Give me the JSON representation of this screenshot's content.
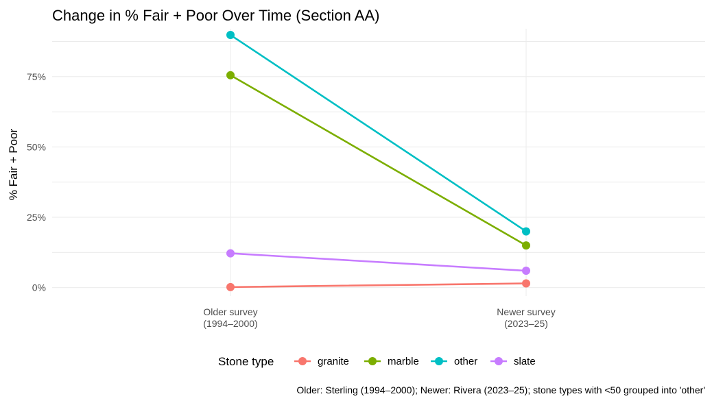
{
  "chart_data": {
    "type": "line",
    "title": "Change in % Fair + Poor Over Time (Section AA)",
    "xlabel": "",
    "ylabel": "% Fair + Poor",
    "categories": [
      [
        "Older survey",
        "(1994–2000)"
      ],
      [
        "Newer survey",
        "(2023–25)"
      ]
    ],
    "ylim": [
      -3,
      92
    ],
    "yticks": [
      0,
      25,
      50,
      75
    ],
    "ytick_labels": [
      "0%",
      "25%",
      "50%",
      "75%"
    ],
    "legend": {
      "title": "Stone type",
      "position": "bottom"
    },
    "grid": true,
    "series": [
      {
        "name": "granite",
        "color": "#F8766D",
        "values": [
          0.2,
          1.5
        ]
      },
      {
        "name": "marble",
        "color": "#7CAE00",
        "values": [
          75.5,
          15.0
        ]
      },
      {
        "name": "other",
        "color": "#00BFC4",
        "values": [
          89.8,
          20.0
        ]
      },
      {
        "name": "slate",
        "color": "#C77CFF",
        "values": [
          12.2,
          6.0
        ]
      }
    ],
    "caption": "Older: Sterling (1994–2000); Newer: Rivera (2023–25); stone types with <50 grouped into 'other'"
  }
}
